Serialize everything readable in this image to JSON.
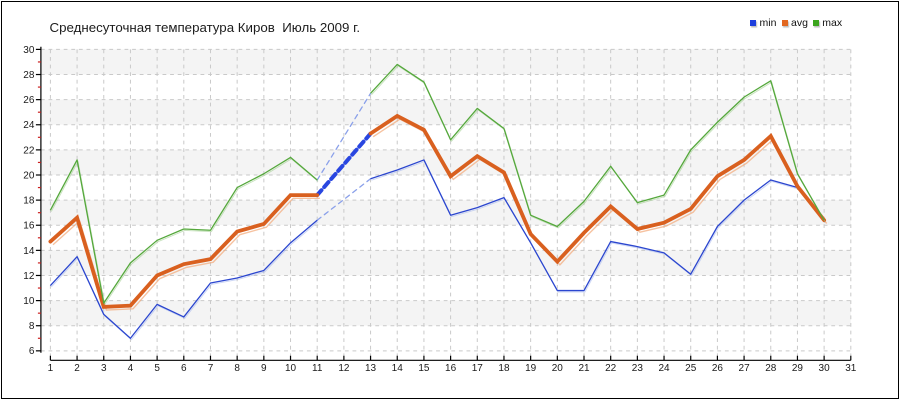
{
  "title": "Среднесуточная температура Киров  Июль 2009 г.",
  "legend": {
    "items": [
      {
        "label": "min",
        "color": "#1c3edd"
      },
      {
        "label": "avg",
        "color": "#e2671f"
      },
      {
        "label": "max",
        "color": "#3ba51d"
      }
    ]
  },
  "chart_data": {
    "type": "line",
    "title": "Среднесуточная температура Киров  Июль 2009 г.",
    "xlabel": "",
    "ylabel": "",
    "x": [
      1,
      2,
      3,
      4,
      5,
      6,
      7,
      8,
      9,
      10,
      11,
      12,
      13,
      14,
      15,
      16,
      17,
      18,
      19,
      20,
      21,
      22,
      23,
      24,
      25,
      26,
      27,
      28,
      29,
      30,
      31
    ],
    "ylim": [
      6,
      30
    ],
    "ytick_step": 2,
    "yticks_labeled": [
      6,
      8,
      10,
      12,
      14,
      16,
      18,
      20,
      22,
      24,
      26,
      28,
      30
    ],
    "yticks_minor": [
      7,
      9,
      11,
      13,
      15,
      17,
      19,
      21,
      23,
      25,
      27,
      29
    ],
    "grid": true,
    "legend_position": "top-right",
    "series": [
      {
        "name": "min",
        "color": "#2b46cf",
        "width": 1.3,
        "values": [
          11.2,
          13.5,
          8.9,
          7.0,
          9.7,
          8.7,
          11.4,
          11.8,
          12.4,
          14.6,
          16.4,
          null,
          19.7,
          20.4,
          21.2,
          16.8,
          17.4,
          18.2,
          14.6,
          10.8,
          10.8,
          14.7,
          14.3,
          13.8,
          12.1,
          15.9,
          18.0,
          19.6,
          19.0,
          16.3,
          null
        ]
      },
      {
        "name": "avg",
        "color": "#d9601f",
        "width": 3.8,
        "values": [
          14.7,
          16.6,
          9.5,
          9.6,
          12.0,
          12.9,
          13.3,
          15.5,
          16.1,
          18.4,
          18.4,
          null,
          23.3,
          24.7,
          23.6,
          19.9,
          21.5,
          20.2,
          15.3,
          13.1,
          15.4,
          17.5,
          15.7,
          16.2,
          17.3,
          19.9,
          21.2,
          23.1,
          19.1,
          16.4,
          null
        ]
      },
      {
        "name": "max",
        "color": "#55a83c",
        "width": 1.3,
        "values": [
          17.2,
          21.2,
          9.8,
          13.0,
          14.8,
          15.7,
          15.6,
          19.0,
          20.1,
          21.4,
          19.6,
          null,
          26.5,
          28.8,
          27.4,
          22.8,
          25.3,
          23.7,
          16.8,
          15.9,
          17.9,
          20.7,
          17.8,
          18.4,
          22.0,
          24.2,
          26.2,
          27.5,
          20.1,
          16.4,
          null
        ]
      }
    ],
    "missing_day": 12,
    "interpolation": {
      "from_day": 11,
      "to_day": 13,
      "styles": {
        "avg": {
          "color": "#2946e0",
          "width": 4.0,
          "dash": [
            6.5,
            4.2
          ]
        },
        "min": {
          "color": "#8aa0ea",
          "width": 1.3,
          "dash": [
            4.8,
            4.2
          ]
        },
        "max": {
          "color": "#8aa0ea",
          "width": 1.3,
          "dash": [
            4.8,
            4.2
          ]
        }
      }
    },
    "style": {
      "band_colors": [
        "#f4f4f4",
        "#ffffff"
      ],
      "grid_color": "#c9c9c9",
      "axis_color": "#000000",
      "minor_tick_color": "#cc2020",
      "tick_label_color": "#1a1a1a",
      "avg_shadow_color": "#f2a878"
    }
  }
}
